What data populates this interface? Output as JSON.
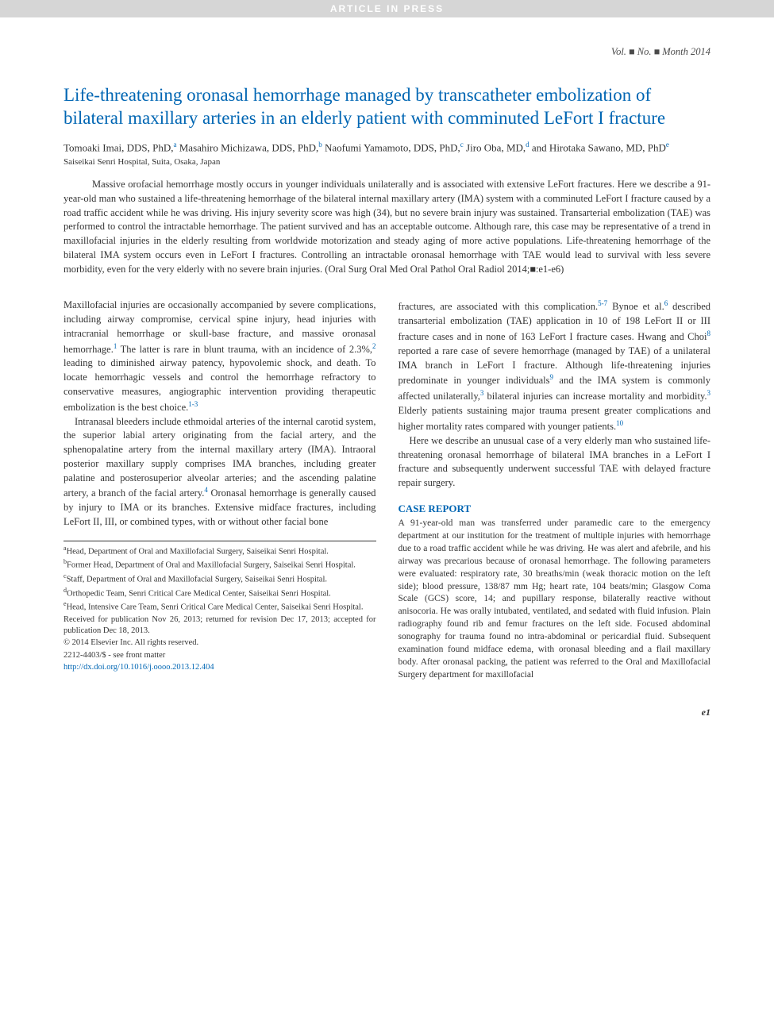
{
  "headerBar": "ARTICLE IN PRESS",
  "volLine": "Vol. ■ No. ■ Month 2014",
  "title": "Life-threatening oronasal hemorrhage managed by transcatheter embolization of bilateral maxillary arteries in an elderly patient with comminuted LeFort I fracture",
  "authors": [
    {
      "name": "Tomoaki Imai, DDS, PhD,",
      "sup": "a"
    },
    {
      "name": " Masahiro Michizawa, DDS, PhD,",
      "sup": "b"
    },
    {
      "name": " Naofumi Yamamoto, DDS, PhD,",
      "sup": "c"
    },
    {
      "name": " Jiro Oba, MD,",
      "sup": "d"
    },
    {
      "name": "and Hirotaka Sawano, MD, PhD",
      "sup": "e"
    }
  ],
  "affilUnder": "Saiseikai Senri Hospital, Suita, Osaka, Japan",
  "abstract": "Massive orofacial hemorrhage mostly occurs in younger individuals unilaterally and is associated with extensive LeFort fractures. Here we describe a 91-year-old man who sustained a life-threatening hemorrhage of the bilateral internal maxillary artery (IMA) system with a comminuted LeFort I fracture caused by a road traffic accident while he was driving. His injury severity score was high (34), but no severe brain injury was sustained. Transarterial embolization (TAE) was performed to control the intractable hemorrhage. The patient survived and has an acceptable outcome. Although rare, this case may be representative of a trend in maxillofacial injuries in the elderly resulting from worldwide motorization and steady aging of more active populations. Life-threatening hemorrhage of the bilateral IMA system occurs even in LeFort I fractures. Controlling an intractable oronasal hemorrhage with TAE would lead to survival with less severe morbidity, even for the very elderly with no severe brain injuries. (Oral Surg Oral Med Oral Pathol Oral Radiol 2014;■:e1-e6)",
  "leftCol": {
    "p1a": "Maxillofacial injuries are occasionally accompanied by severe complications, including airway compromise, cervical spine injury, head injuries with intracranial hemorrhage or skull-base fracture, and massive oronasal hemorrhage.",
    "r1": "1",
    "p1b": " The latter is rare in blunt trauma, with an incidence of 2.3%,",
    "r2": "2",
    "p1c": " leading to diminished airway patency, hypovolemic shock, and death. To locate hemorrhagic vessels and control the hemorrhage refractory to conservative measures, angiographic intervention providing therapeutic embolization is the best choice.",
    "r3": "1-3",
    "p2a": "Intranasal bleeders include ethmoidal arteries of the internal carotid system, the superior labial artery originating from the facial artery, and the sphenopalatine artery from the internal maxillary artery (IMA). Intraoral posterior maxillary supply comprises IMA branches, including greater palatine and posterosuperior alveolar arteries; and the ascending palatine artery, a branch of the facial artery.",
    "r4": "4",
    "p2b": " Oronasal hemorrhage is generally caused by injury to IMA or its branches. Extensive midface fractures, including LeFort II, III, or combined types, with or without other facial bone"
  },
  "rightCol": {
    "p1a": "fractures, are associated with this complication.",
    "r5": "5-7",
    "p1b": " Bynoe et al.",
    "r6": "6",
    "p1c": " described transarterial embolization (TAE) application in 10 of 198 LeFort II or III fracture cases and in none of 163 LeFort I fracture cases. Hwang and Choi",
    "r8": "8",
    "p1d": " reported a rare case of severe hemorrhage (managed by TAE) of a unilateral IMA branch in LeFort I fracture. Although life-threatening injuries predominate in younger individuals",
    "r9": "9",
    "p1e": " and the IMA system is commonly affected unilaterally,",
    "r3a": "3",
    "p1f": " bilateral injuries can increase mortality and morbidity.",
    "r3b": "3",
    "p1g": " Elderly patients sustaining major trauma present greater complications and higher mortality rates compared with younger patients.",
    "r10": "10",
    "p2": "Here we describe an unusual case of a very elderly man who sustained life-threatening oronasal hemorrhage of bilateral IMA branches in a LeFort I fracture and subsequently underwent successful TAE with delayed fracture repair surgery.",
    "caseHead": "CASE REPORT",
    "case": "A 91-year-old man was transferred under paramedic care to the emergency department at our institution for the treatment of multiple injuries with hemorrhage due to a road traffic accident while he was driving. He was alert and afebrile, and his airway was precarious because of oronasal hemorrhage. The following parameters were evaluated: respiratory rate, 30 breaths/min (weak thoracic motion on the left side); blood pressure, 138/87 mm Hg; heart rate, 104 beats/min; Glasgow Coma Scale (GCS) score, 14; and pupillary response, bilaterally reactive without anisocoria. He was orally intubated, ventilated, and sedated with fluid infusion. Plain radiography found rib and femur fractures on the left side. Focused abdominal sonography for trauma found no intra-abdominal or pericardial fluid. Subsequent examination found midface edema, with oronasal bleeding and a flail maxillary body. After oronasal packing, the patient was referred to the Oral and Maxillofacial Surgery department for maxillofacial"
  },
  "footnotes": [
    {
      "sup": "a",
      "text": "Head, Department of Oral and Maxillofacial Surgery, Saiseikai Senri Hospital."
    },
    {
      "sup": "b",
      "text": "Former Head, Department of Oral and Maxillofacial Surgery, Saiseikai Senri Hospital."
    },
    {
      "sup": "c",
      "text": "Staff, Department of Oral and Maxillofacial Surgery, Saiseikai Senri Hospital."
    },
    {
      "sup": "d",
      "text": "Orthopedic Team, Senri Critical Care Medical Center, Saiseikai Senri Hospital."
    },
    {
      "sup": "e",
      "text": "Head, Intensive Care Team, Senri Critical Care Medical Center, Saiseikai Senri Hospital."
    }
  ],
  "received": "Received for publication Nov 26, 2013; returned for revision Dec 17, 2013; accepted for publication Dec 18, 2013.",
  "copyright": "© 2014 Elsevier Inc. All rights reserved.",
  "issn": "2212-4403/$ - see front matter",
  "doi": "http://dx.doi.org/10.1016/j.oooo.2013.12.404",
  "pageNum": "e1",
  "colors": {
    "link": "#0066b3",
    "headerBg": "#d6d6d6",
    "text": "#333333"
  }
}
